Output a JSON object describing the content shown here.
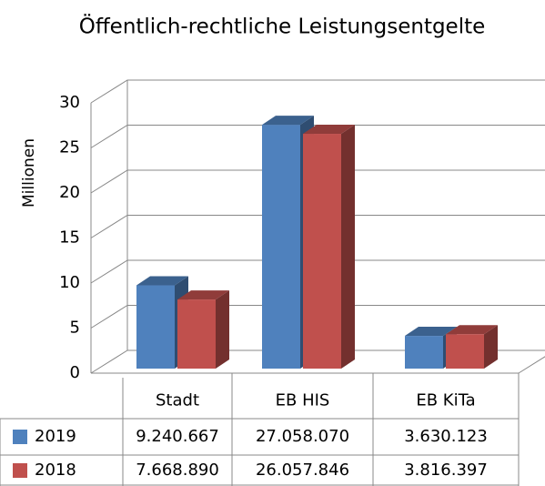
{
  "chart_data": {
    "type": "bar3d",
    "title": "Öffentlich-rechtliche Leistungsentgelte",
    "y_label": "Millionen",
    "categories": [
      "Stadt",
      "EB HIS",
      "EB KiTa"
    ],
    "series": [
      {
        "name": "2019",
        "color": "#4f81bd",
        "values": [
          9.240667,
          27.05807,
          3.630123
        ],
        "value_labels": [
          "9.240.667",
          "27.058.070",
          "3.630.123"
        ]
      },
      {
        "name": "2018",
        "color": "#c0504d",
        "values": [
          7.66889,
          26.057846,
          3.816397
        ],
        "value_labels": [
          "7.668.890",
          "26.057.846",
          "3.816.397"
        ]
      }
    ],
    "ylim": [
      0,
      30
    ],
    "yticks": [
      0,
      5,
      10,
      15,
      20,
      25,
      30
    ],
    "grid": true,
    "legend": "table"
  }
}
